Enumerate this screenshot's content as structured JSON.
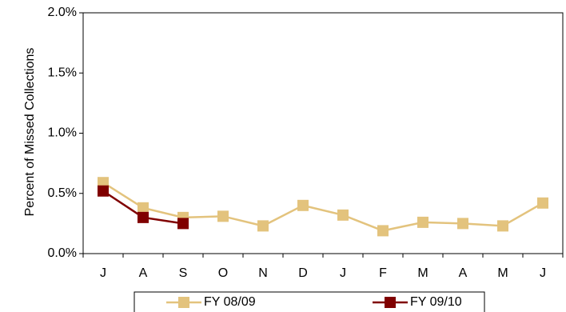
{
  "chart_data": {
    "type": "line",
    "y_label": "Percent of Missed Collections",
    "categories": [
      "J",
      "A",
      "S",
      "O",
      "N",
      "D",
      "J",
      "F",
      "M",
      "A",
      "M",
      "J"
    ],
    "series": [
      {
        "name": "FY 08/09",
        "color": "#e3c37d",
        "values": [
          0.59,
          0.38,
          0.3,
          0.31,
          0.23,
          0.4,
          0.32,
          0.19,
          0.26,
          0.25,
          0.23,
          0.42
        ]
      },
      {
        "name": "FY 09/10",
        "color": "#800000",
        "values": [
          0.52,
          0.3,
          0.25,
          null,
          null,
          null,
          null,
          null,
          null,
          null,
          null,
          null
        ]
      }
    ],
    "ylim": [
      0,
      2.0
    ],
    "yticks": [
      {
        "value": 0,
        "label": "0.0%"
      },
      {
        "value": 0.5,
        "label": "0.5%"
      },
      {
        "value": 1.0,
        "label": "1.0%"
      },
      {
        "value": 1.5,
        "label": "1.5%"
      },
      {
        "value": 2.0,
        "label": "2.0%"
      }
    ],
    "legend": "bottom"
  }
}
